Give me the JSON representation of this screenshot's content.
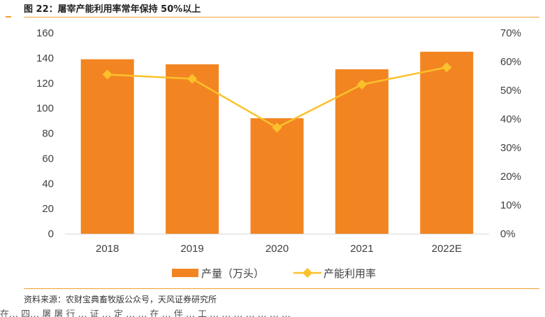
{
  "figure": {
    "title": "图 22：屠宰产能利用率常年保持 50%以上",
    "source": "资料来源：农财宝典畜牧版公众号，天风证券研究所",
    "cut_text": "在… 四… 屠 屠 行 … 证 … 定 … … 在 … 伴 … 工 … … … … … … …"
  },
  "colors": {
    "bar": "#f28522",
    "line": "#fbc12c",
    "axis_text": "#404040",
    "rule": "#f0a030"
  },
  "chart_data": {
    "type": "bar",
    "categories": [
      "2018",
      "2019",
      "2020",
      "2021",
      "2022E"
    ],
    "series": [
      {
        "name": "产量（万头）",
        "type": "bar",
        "axis": "left",
        "values": [
          139,
          135,
          92,
          131,
          145
        ]
      },
      {
        "name": "产能利用率",
        "type": "line",
        "axis": "right",
        "values": [
          0.555,
          0.54,
          0.37,
          0.52,
          0.58
        ]
      }
    ],
    "y_left": {
      "min": 0,
      "max": 160,
      "ticks": [
        "0",
        "20",
        "40",
        "60",
        "80",
        "100",
        "120",
        "140",
        "160"
      ]
    },
    "y_right": {
      "min": 0,
      "max": 0.7,
      "ticks": [
        "0%",
        "10%",
        "20%",
        "30%",
        "40%",
        "50%",
        "60%",
        "70%"
      ]
    },
    "grid": false,
    "legend_position": "bottom"
  }
}
